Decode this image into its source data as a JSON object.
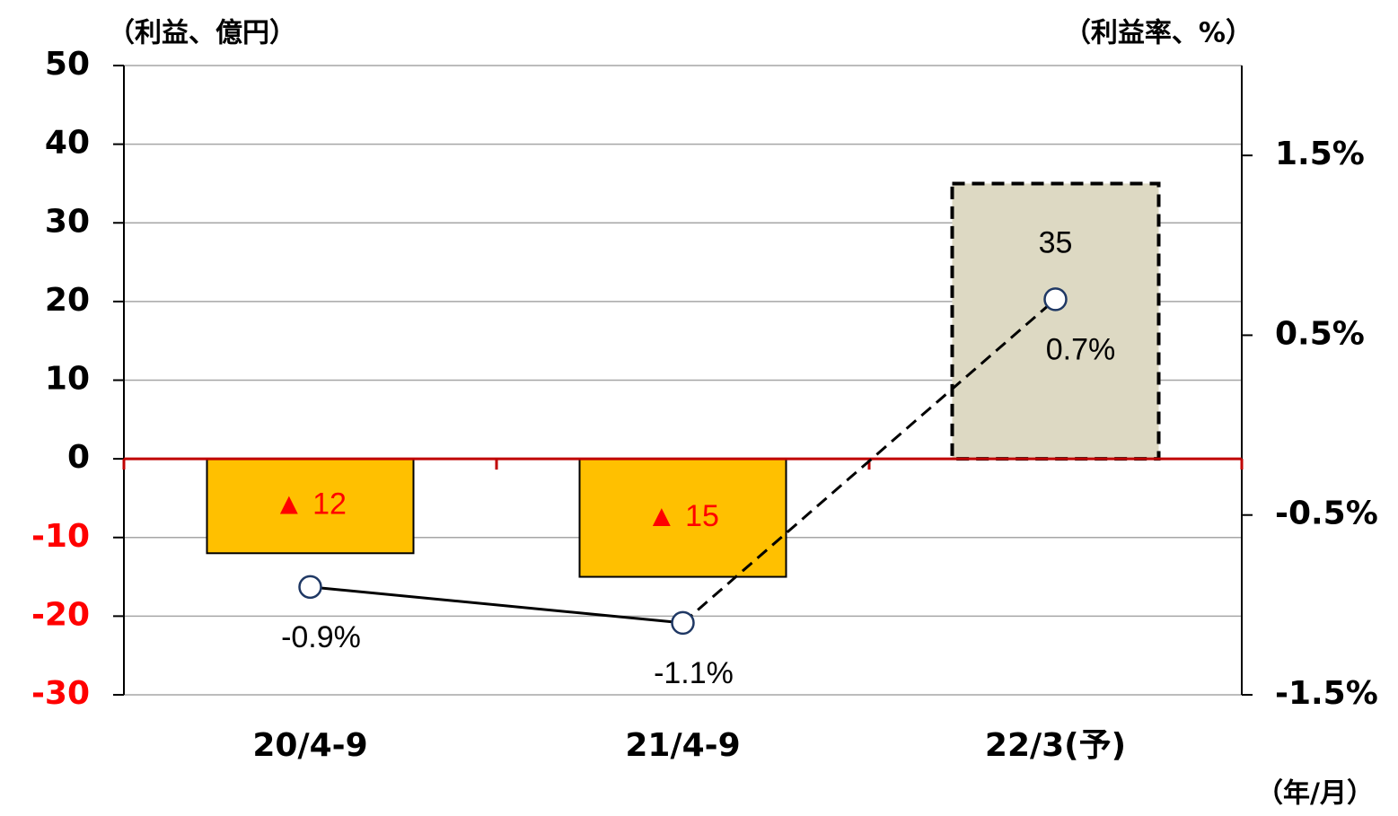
{
  "chart_data": {
    "type": "bar_line",
    "y_label": "（利益、億円）",
    "y2_label": "（利益率、%）",
    "x_label": "（年/月）",
    "categories": [
      "20/4-9",
      "21/4-9",
      "22/3(予)"
    ],
    "ylim": [
      -30,
      50
    ],
    "yticks": [
      -30,
      -20,
      -10,
      0,
      10,
      20,
      30,
      40,
      50
    ],
    "y2lim": [
      -1.5,
      2.0
    ],
    "y2ticks": [
      {
        "value": -1.5,
        "label": "-1.5%"
      },
      {
        "value": -0.5,
        "label": "-0.5%"
      },
      {
        "value": 0.5,
        "label": "0.5%"
      },
      {
        "value": 1.5,
        "label": "1.5%"
      }
    ],
    "grid": true,
    "negative_tick_color": "#ff0000",
    "zero_line_color": "#c00000",
    "negative_label_color": "#ff0000",
    "series": [
      {
        "type": "bar",
        "values": [
          -12,
          -15,
          35
        ],
        "value_labels": [
          "▲ 12",
          "▲ 15",
          "35"
        ],
        "colors": [
          "#ffc000",
          "#ffc000",
          "#ddd9c3"
        ],
        "dashed": [
          false,
          false,
          true
        ]
      },
      {
        "type": "line",
        "axis": "y2",
        "values": [
          -0.9,
          -1.1,
          0.7
        ],
        "value_labels": [
          "-0.9%",
          "-1.1%",
          "0.7%"
        ],
        "color": "#000000",
        "dashed": [
          false,
          false,
          true
        ]
      }
    ]
  }
}
